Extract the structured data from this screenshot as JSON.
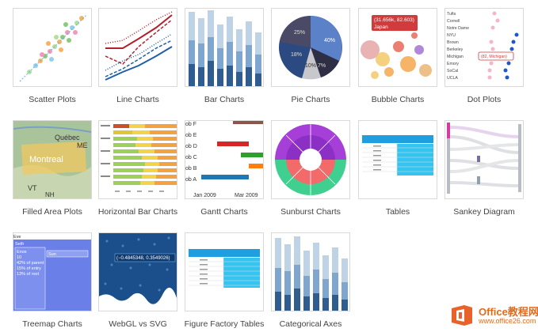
{
  "gallery": {
    "items": [
      {
        "label": "Scatter Plots"
      },
      {
        "label": "Line Charts"
      },
      {
        "label": "Bar Charts"
      },
      {
        "label": "Pie Charts"
      },
      {
        "label": "Bubble Charts"
      },
      {
        "label": "Dot Plots"
      },
      {
        "label": "Filled Area Plots"
      },
      {
        "label": "Horizontal Bar Charts"
      },
      {
        "label": "Gantt Charts"
      },
      {
        "label": "Sunburst Charts"
      },
      {
        "label": "Tables"
      },
      {
        "label": "Sankey Diagram"
      },
      {
        "label": "Treemap Charts"
      },
      {
        "label": "WebGL vs SVG"
      },
      {
        "label": "Figure Factory Tables"
      },
      {
        "label": "Categorical Axes"
      }
    ]
  },
  "thumbs": {
    "pie": {
      "a": "25%",
      "b": "40%",
      "c": "18%",
      "d": "10%",
      "e": "7%"
    },
    "bubble": {
      "tip1": "(31.656k, 82.603)",
      "tip2": "Japan"
    },
    "dot": {
      "schools": [
        "Tufts",
        "Cornell",
        "Notre Dame",
        "NYU",
        "Brown",
        "Berkeley",
        "Michigan",
        "Emory",
        "SoCal",
        "UCLA"
      ],
      "tip": "(82, Michigan)"
    },
    "area": {
      "place1": "Québec",
      "place2": "Montreal",
      "place3": "ME",
      "place4": "VT",
      "place5": "NH"
    },
    "gantt": {
      "rows": [
        "ob F",
        "ob E",
        "ob D",
        "ob C",
        "ob B",
        "ob A"
      ],
      "x1": "Jan 2009",
      "x2": "Mar 2009"
    },
    "treemap": {
      "root": "Eve",
      "child": "Seth",
      "leaf": "Enos",
      "val": "10",
      "l1": "42% of parent",
      "l2": "15% of entry",
      "l3": "13% of root",
      "side": "Sun"
    },
    "webgl": {
      "tip": "(−0.4845348, 0.3549026)"
    }
  },
  "watermark": {
    "name": "Office教程网",
    "url": "www.office26.com"
  },
  "colors": {
    "accent_blue": "#1f77b4",
    "accent_red": "#d62728",
    "watermark_orange": "#e06b1d"
  }
}
